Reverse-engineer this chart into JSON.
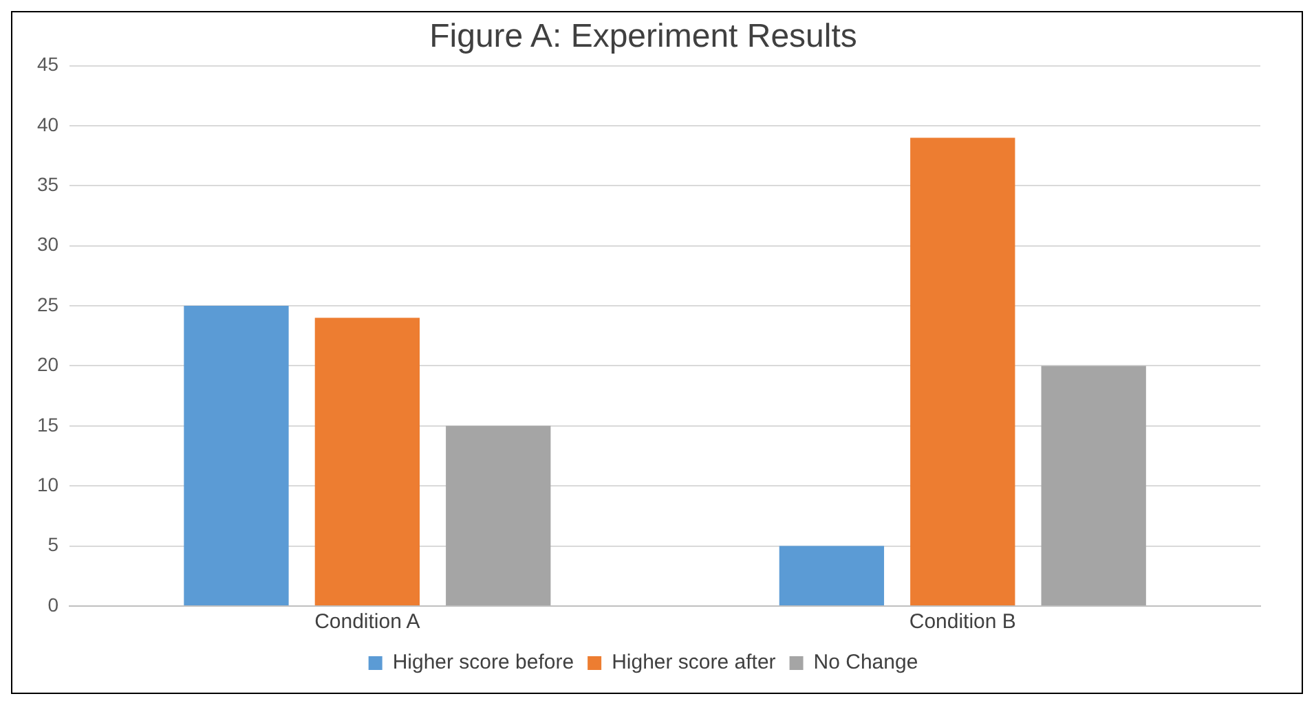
{
  "chart_data": {
    "type": "bar",
    "title": "Figure A: Experiment Results",
    "categories": [
      "Condition A",
      "Condition B"
    ],
    "series": [
      {
        "name": "Higher score before",
        "color": "#5b9bd5",
        "values": [
          25,
          5
        ]
      },
      {
        "name": "Higher score after",
        "color": "#ed7d31",
        "values": [
          24,
          39
        ]
      },
      {
        "name": "No Change",
        "color": "#a5a5a5",
        "values": [
          15,
          20
        ]
      }
    ],
    "ylim": [
      0,
      45
    ],
    "yticks": [
      0,
      5,
      10,
      15,
      20,
      25,
      30,
      35,
      40,
      45
    ],
    "grid": "y",
    "legend": "bottom"
  }
}
